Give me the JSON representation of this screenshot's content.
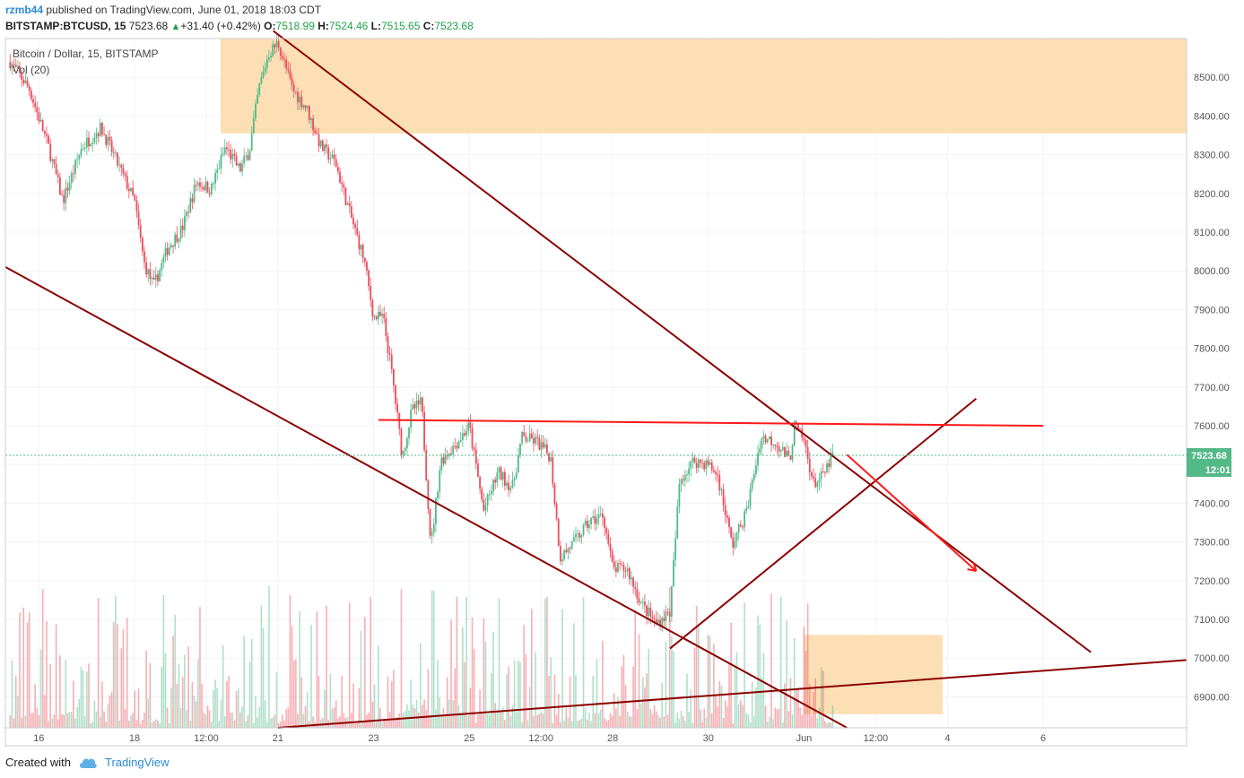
{
  "header": {
    "user": "rzmb44",
    "published_text": "published on TradingView.com, June 01, 2018 18:03 CDT",
    "symbol_line": "BITSTAMP:BTCUSD, 15",
    "last": "7523.68",
    "change": "+31.40 (+0.42%)",
    "o_label": "O:",
    "o_value": "7518.99",
    "h_label": "H:",
    "h_value": "7524.46",
    "l_label": "L:",
    "l_value": "7515.65",
    "c_label": "C:",
    "c_value": "7523.68"
  },
  "legend": {
    "series": "Bitcoin / Dollar, 15, BITSTAMP",
    "volume": "Vol (20)"
  },
  "price_tag": {
    "value": "7523.68",
    "countdown": "12:01"
  },
  "footer": {
    "created_with": "Created with",
    "brand": "TradingView"
  },
  "colors": {
    "up": "#53b987",
    "down": "#eb4d5c",
    "trendline": "#8b0000",
    "red_line": "#ff1a1a",
    "zone": "#fbd9a8",
    "price_tag_bg": "#53b987",
    "grid": "#f0f3f5"
  },
  "chart_data": {
    "type": "candlestick",
    "interval": "15",
    "symbol": "BITSTAMP:BTCUSD",
    "ylim": [
      6820,
      8600
    ],
    "y_ticks": [
      6900,
      7000,
      7100,
      7200,
      7300,
      7400,
      7500,
      7600,
      7700,
      7800,
      7900,
      8000,
      8100,
      8200,
      8300,
      8400,
      8500
    ],
    "y_tick_labels": [
      "6900.00",
      "7000.00",
      "7100.00",
      "7200.00",
      "7300.00",
      "7400.00",
      "7500.00",
      "7600.00",
      "7700.00",
      "7800.00",
      "7900.00",
      "8000.00",
      "8100.00",
      "8200.00",
      "8300.00",
      "8400.00",
      "8500.00"
    ],
    "x_tick_labels": [
      "16",
      "18",
      "12:00",
      "21",
      "23",
      "25",
      "12:00",
      "28",
      "30",
      "Jun",
      "12:00",
      "4",
      "6"
    ],
    "x_tick_days": [
      16,
      18,
      19.5,
      21,
      23,
      25,
      26.5,
      28,
      30,
      32,
      33.5,
      35,
      37
    ],
    "price_path": [
      [
        15.4,
        8540
      ],
      [
        15.8,
        8470
      ],
      [
        16.2,
        8320
      ],
      [
        16.5,
        8180
      ],
      [
        16.9,
        8320
      ],
      [
        17.3,
        8370
      ],
      [
        17.6,
        8290
      ],
      [
        18.0,
        8180
      ],
      [
        18.2,
        8020
      ],
      [
        18.4,
        7960
      ],
      [
        18.7,
        8060
      ],
      [
        19.0,
        8110
      ],
      [
        19.3,
        8230
      ],
      [
        19.6,
        8210
      ],
      [
        19.9,
        8320
      ],
      [
        20.2,
        8260
      ],
      [
        20.4,
        8310
      ],
      [
        20.6,
        8470
      ],
      [
        20.8,
        8560
      ],
      [
        21.0,
        8590
      ],
      [
        21.3,
        8470
      ],
      [
        21.6,
        8420
      ],
      [
        21.9,
        8320
      ],
      [
        22.2,
        8280
      ],
      [
        22.5,
        8150
      ],
      [
        22.8,
        8030
      ],
      [
        23.0,
        7880
      ],
      [
        23.2,
        7880
      ],
      [
        23.4,
        7720
      ],
      [
        23.6,
        7520
      ],
      [
        23.8,
        7640
      ],
      [
        24.0,
        7660
      ],
      [
        24.2,
        7290
      ],
      [
        24.4,
        7510
      ],
      [
        24.7,
        7550
      ],
      [
        25.0,
        7600
      ],
      [
        25.3,
        7380
      ],
      [
        25.6,
        7480
      ],
      [
        25.9,
        7440
      ],
      [
        26.1,
        7570
      ],
      [
        26.4,
        7560
      ],
      [
        26.7,
        7520
      ],
      [
        26.9,
        7260
      ],
      [
        27.2,
        7300
      ],
      [
        27.5,
        7350
      ],
      [
        27.8,
        7370
      ],
      [
        28.0,
        7230
      ],
      [
        28.3,
        7230
      ],
      [
        28.6,
        7140
      ],
      [
        28.9,
        7090
      ],
      [
        29.2,
        7120
      ],
      [
        29.4,
        7460
      ],
      [
        29.7,
        7510
      ],
      [
        30.0,
        7500
      ],
      [
        30.2,
        7470
      ],
      [
        30.5,
        7290
      ],
      [
        30.8,
        7380
      ],
      [
        31.1,
        7570
      ],
      [
        31.4,
        7560
      ],
      [
        31.7,
        7510
      ],
      [
        31.8,
        7600
      ],
      [
        32.0,
        7560
      ],
      [
        32.2,
        7450
      ],
      [
        32.4,
        7470
      ],
      [
        32.6,
        7524
      ]
    ],
    "trend_lines": [
      {
        "color": "dark-red",
        "from": [
          15.3,
          8010
        ],
        "to": [
          32.9,
          6820
        ]
      },
      {
        "color": "dark-red",
        "from": [
          20.9,
          8620
        ],
        "to": [
          38.0,
          7015
        ]
      },
      {
        "color": "dark-red",
        "from": [
          21.0,
          6820
        ],
        "to": [
          40.0,
          6995
        ]
      },
      {
        "color": "dark-red",
        "from": [
          29.2,
          7025
        ],
        "to": [
          35.6,
          7670
        ]
      },
      {
        "color": "red",
        "from": [
          23.1,
          7615
        ],
        "to": [
          37.0,
          7600
        ]
      }
    ],
    "arrow": {
      "from": [
        32.9,
        7525
      ],
      "to": [
        35.6,
        7225
      ],
      "color": "red"
    },
    "zones": [
      {
        "from_day": 19.8,
        "to_day": 40.0,
        "y_low": 8355,
        "y_high": 8600
      },
      {
        "from_day": 32.0,
        "to_day": 34.9,
        "y_low": 6855,
        "y_high": 7060
      }
    ]
  }
}
